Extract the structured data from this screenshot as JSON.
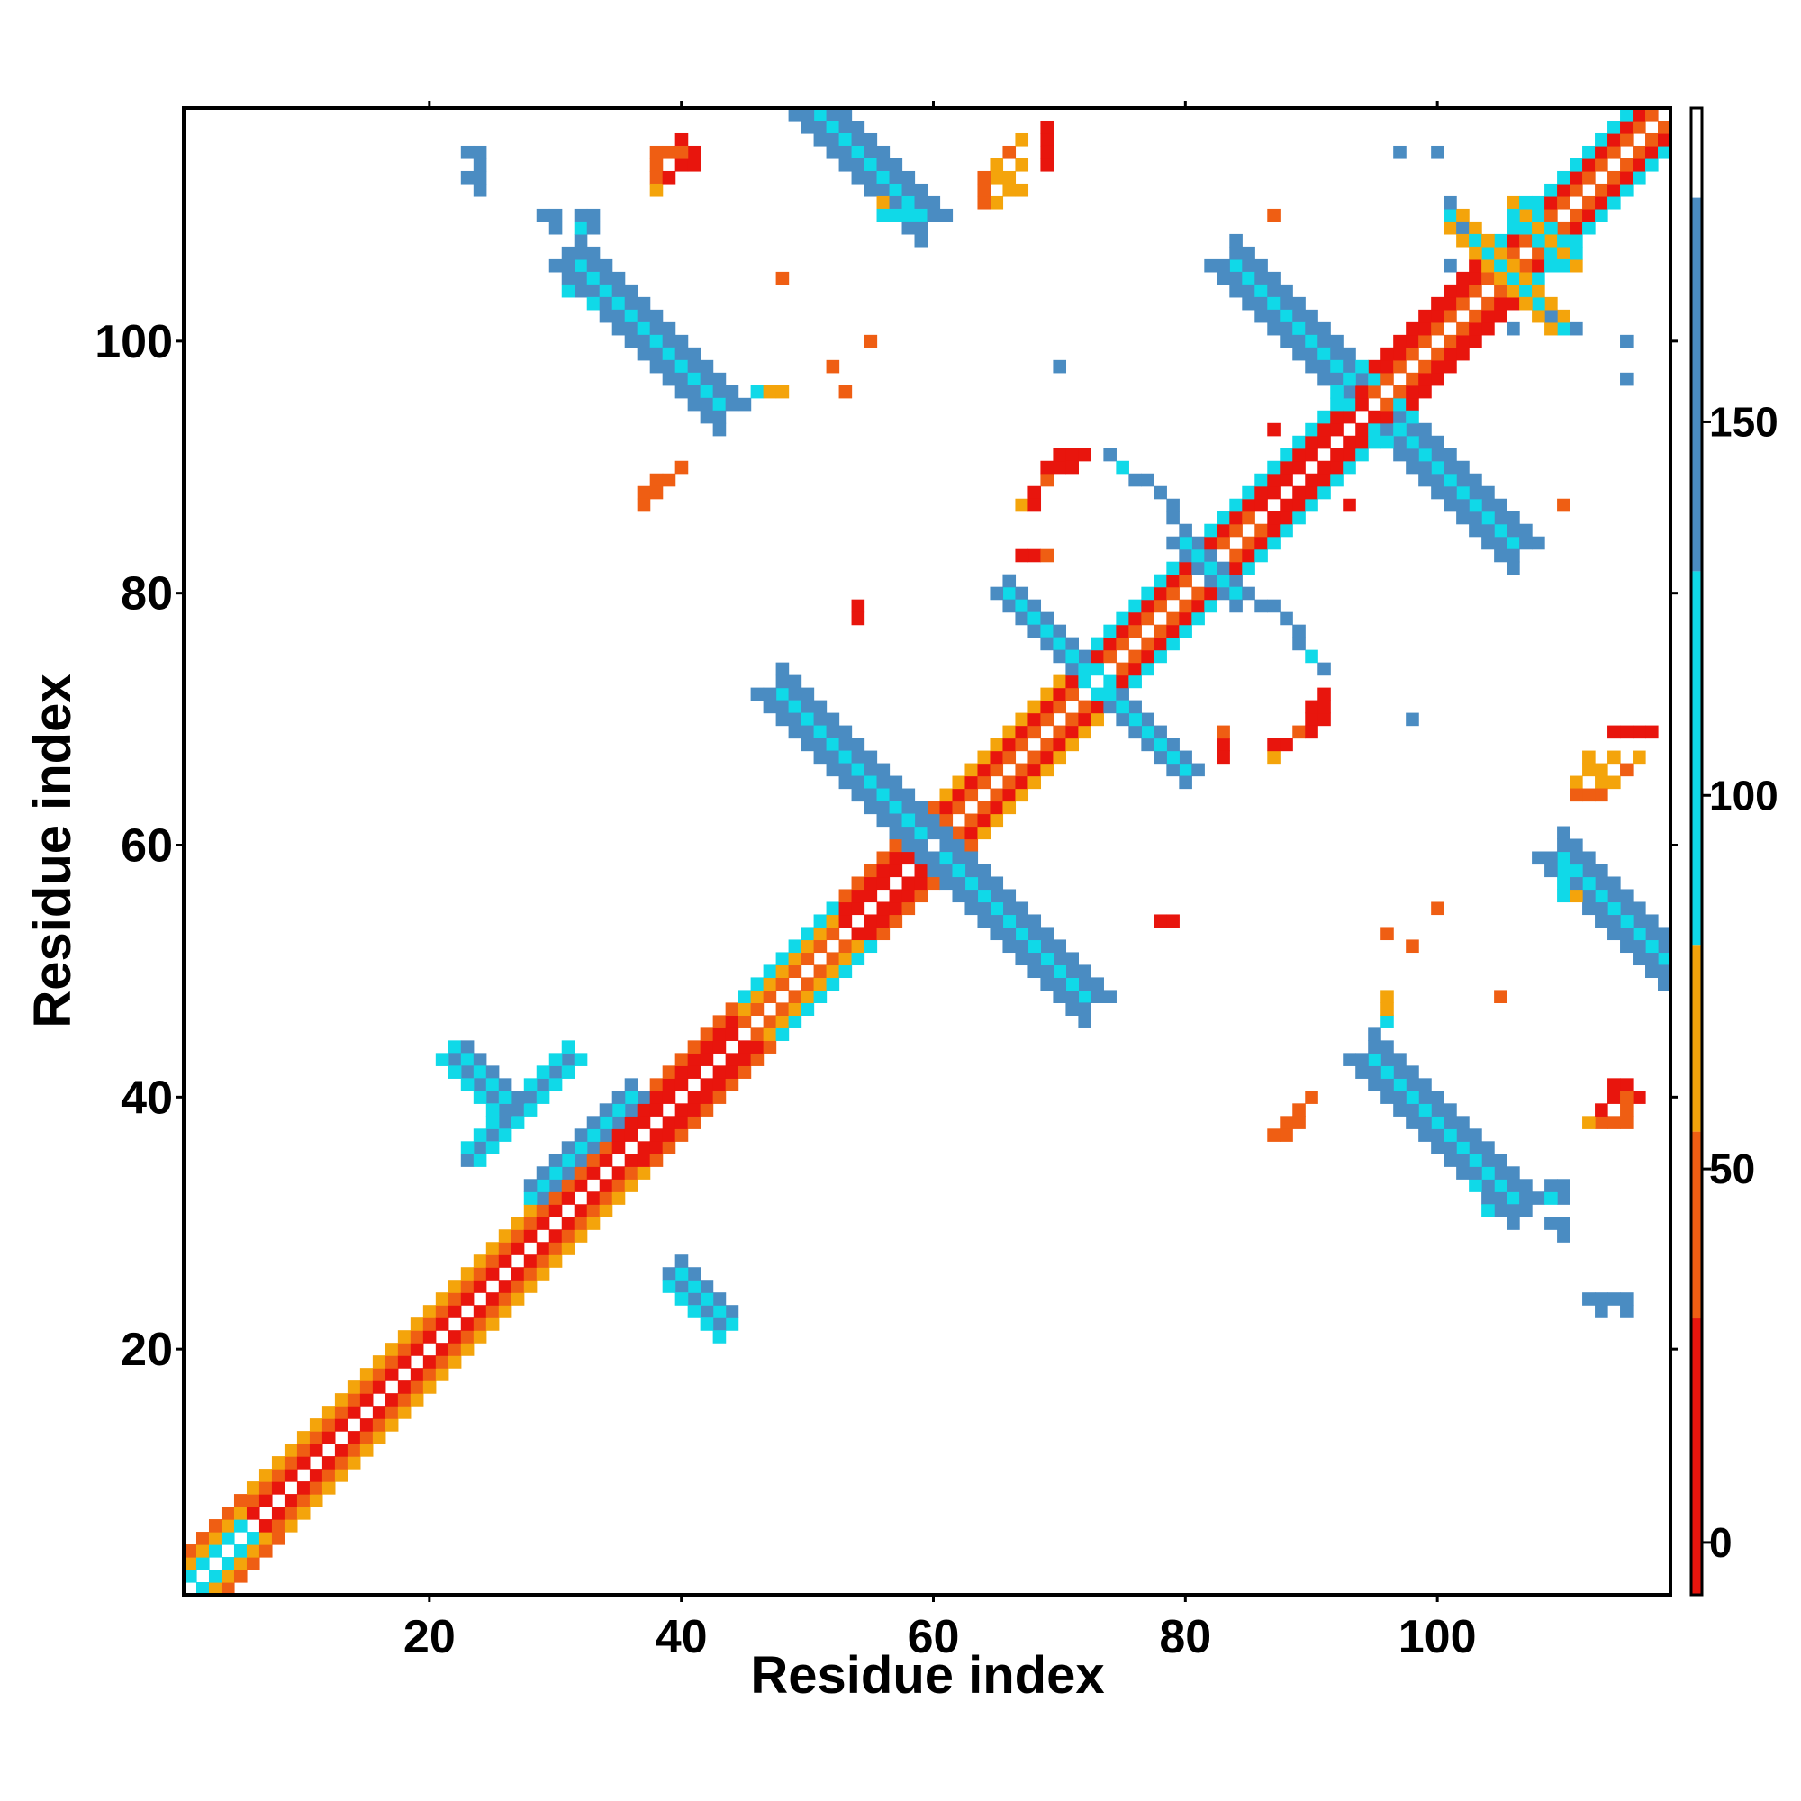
{
  "chart_data": {
    "type": "heatmap",
    "title": "",
    "xlabel": "Residue index",
    "ylabel": "Residue index",
    "xlim": [
      0.5,
      118.5
    ],
    "ylim": [
      0.5,
      118.5
    ],
    "x_ticks": [
      20,
      40,
      60,
      80,
      100
    ],
    "y_ticks": [
      20,
      40,
      60,
      80,
      100
    ],
    "x_tick_labels": [
      "20",
      "40",
      "60",
      "80",
      "100"
    ],
    "y_tick_labels": [
      "20",
      "40",
      "60",
      "80",
      "100"
    ],
    "grid": false,
    "colorbar": {
      "ticks": [
        0,
        50,
        100,
        150
      ],
      "tick_labels": [
        "0",
        "50",
        "100",
        "150"
      ],
      "range": [
        -7,
        192
      ],
      "bands": [
        {
          "from": -7,
          "to": 30,
          "color": "#e8150d"
        },
        {
          "from": 30,
          "to": 55,
          "color": "#ef5e13"
        },
        {
          "from": 55,
          "to": 80,
          "color": "#f4a40b"
        },
        {
          "from": 80,
          "to": 130,
          "color": "#10d9e8"
        },
        {
          "from": 130,
          "to": 180,
          "color": "#4a8cc2"
        },
        {
          "from": 180,
          "to": 192,
          "color": "#ffffff"
        }
      ]
    },
    "colors": {
      "red": "#e8150d",
      "orange_red": "#ef5e13",
      "orange": "#f4a40b",
      "cyan": "#10d9e8",
      "steel_blue": "#4a8cc2",
      "blue": "#3a7bbf"
    },
    "diagonal": {
      "start": 1,
      "end": 118
    },
    "segments": [
      {
        "x1": 1,
        "y1": 1,
        "x2": 6,
        "y2": 6,
        "offsets": [
          1,
          2,
          3
        ],
        "colors": [
          "cyan",
          "orange",
          "orange_red"
        ]
      },
      {
        "x1": 6,
        "y1": 6,
        "x2": 35,
        "y2": 35,
        "offsets": [
          1,
          2,
          3
        ],
        "colors": [
          "red",
          "orange_red",
          "orange"
        ]
      },
      {
        "x1": 35,
        "y1": 35,
        "x2": 45,
        "y2": 45,
        "offsets": [
          1,
          2,
          3
        ],
        "colors": [
          "red",
          "red",
          "orange_red"
        ]
      },
      {
        "x1": 45,
        "y1": 45,
        "x2": 53,
        "y2": 53,
        "offsets": [
          1,
          2,
          3
        ],
        "colors": [
          "orange_red",
          "orange",
          "cyan"
        ]
      },
      {
        "x1": 53,
        "y1": 53,
        "x2": 61,
        "y2": 61,
        "offsets": [
          1,
          2,
          3
        ],
        "colors": [
          "red",
          "red",
          "orange_red"
        ]
      },
      {
        "x1": 61,
        "y1": 61,
        "x2": 73,
        "y2": 73,
        "offsets": [
          1,
          2,
          3
        ],
        "colors": [
          "orange_red",
          "red",
          "orange"
        ]
      },
      {
        "x1": 73,
        "y1": 73,
        "x2": 86,
        "y2": 86,
        "offsets": [
          1,
          2,
          3
        ],
        "colors": [
          "orange_red",
          "red",
          "cyan"
        ]
      },
      {
        "x1": 86,
        "y1": 86,
        "x2": 95,
        "y2": 95,
        "offsets": [
          1,
          2,
          3
        ],
        "colors": [
          "red",
          "red",
          "cyan"
        ]
      },
      {
        "x1": 95,
        "y1": 95,
        "x2": 105,
        "y2": 105,
        "offsets": [
          1,
          2,
          3
        ],
        "colors": [
          "orange_red",
          "red",
          "red"
        ]
      },
      {
        "x1": 105,
        "y1": 105,
        "x2": 118,
        "y2": 118,
        "offsets": [
          1,
          2,
          3
        ],
        "colors": [
          "orange_red",
          "red",
          "cyan"
        ]
      },
      {
        "x1": 31,
        "y1": 43,
        "x2": 23,
        "y2": 35,
        "offsets": [
          0,
          1
        ],
        "colors": [
          "steel_blue",
          "cyan"
        ]
      },
      {
        "x1": 36,
        "y1": 40,
        "x2": 28,
        "y2": 32,
        "offsets": [
          0,
          1
        ],
        "colors": [
          "cyan",
          "steel_blue"
        ]
      },
      {
        "x1": 22,
        "y1": 44,
        "x2": 26,
        "y2": 40,
        "offsets": [
          0,
          1
        ],
        "colors": [
          "steel_blue",
          "steel_blue"
        ]
      },
      {
        "x1": 39,
        "y1": 26,
        "x2": 43,
        "y2": 22,
        "offsets": [
          0,
          1
        ],
        "colors": [
          "steel_blue",
          "cyan"
        ]
      },
      {
        "x1": 48,
        "y1": 72,
        "x2": 59,
        "y2": 61,
        "offsets": [
          0,
          1,
          2
        ],
        "colors": [
          "cyan",
          "steel_blue",
          "steel_blue"
        ]
      },
      {
        "x1": 61,
        "y1": 59,
        "x2": 72,
        "y2": 48,
        "offsets": [
          0,
          1,
          2
        ],
        "colors": [
          "cyan",
          "steel_blue",
          "steel_blue"
        ]
      },
      {
        "x1": 66,
        "y1": 80,
        "x2": 72,
        "y2": 74,
        "offsets": [
          0,
          1
        ],
        "colors": [
          "steel_blue",
          "cyan"
        ]
      },
      {
        "x1": 74,
        "y1": 72,
        "x2": 80,
        "y2": 66,
        "offsets": [
          0,
          1
        ],
        "colors": [
          "cyan",
          "steel_blue"
        ]
      },
      {
        "x1": 80,
        "y1": 84,
        "x2": 84,
        "y2": 80,
        "offsets": [
          0,
          1
        ],
        "colors": [
          "cyan",
          "steel_blue"
        ]
      },
      {
        "x1": 84,
        "y1": 106,
        "x2": 93,
        "y2": 97,
        "offsets": [
          0,
          1,
          2
        ],
        "colors": [
          "steel_blue",
          "steel_blue",
          "cyan"
        ]
      },
      {
        "x1": 97,
        "y1": 93,
        "x2": 106,
        "y2": 84,
        "offsets": [
          0,
          1,
          2
        ],
        "colors": [
          "cyan",
          "steel_blue",
          "steel_blue"
        ]
      },
      {
        "x1": 32,
        "y1": 106,
        "x2": 43,
        "y2": 95,
        "offsets": [
          0,
          1,
          2
        ],
        "colors": [
          "cyan",
          "steel_blue",
          "steel_blue"
        ]
      },
      {
        "x1": 51,
        "y1": 118,
        "x2": 59,
        "y2": 110,
        "offsets": [
          0,
          1,
          2
        ],
        "colors": [
          "cyan",
          "steel_blue",
          "steel_blue"
        ]
      },
      {
        "x1": 95,
        "y1": 43,
        "x2": 106,
        "y2": 32,
        "offsets": [
          0,
          1,
          2
        ],
        "colors": [
          "cyan",
          "steel_blue",
          "steel_blue"
        ]
      },
      {
        "x1": 110,
        "y1": 59,
        "x2": 118,
        "y2": 51,
        "offsets": [
          0,
          1,
          2
        ],
        "colors": [
          "cyan",
          "steel_blue",
          "steel_blue"
        ]
      },
      {
        "x1": 101,
        "y1": 110,
        "x2": 106,
        "y2": 105,
        "offsets": [
          0,
          1
        ],
        "colors": [
          "cyan",
          "orange"
        ]
      },
      {
        "x1": 106,
        "y1": 111,
        "x2": 110,
        "y2": 107,
        "offsets": [
          0,
          1
        ],
        "colors": [
          "orange",
          "cyan"
        ]
      }
    ],
    "cells": [
      [
        23,
        115,
        "steel_blue"
      ],
      [
        24,
        115,
        "steel_blue"
      ],
      [
        24,
        114,
        "steel_blue"
      ],
      [
        29,
        110,
        "steel_blue"
      ],
      [
        30,
        110,
        "steel_blue"
      ],
      [
        32,
        110,
        "steel_blue"
      ],
      [
        32,
        109,
        "cyan"
      ],
      [
        38,
        115,
        "orange_red"
      ],
      [
        39,
        115,
        "orange_red"
      ],
      [
        40,
        116,
        "red"
      ],
      [
        41,
        115,
        "red"
      ],
      [
        38,
        114,
        "orange_red"
      ],
      [
        38,
        113,
        "orange_red"
      ],
      [
        40,
        114,
        "orange_red"
      ],
      [
        65,
        113,
        "orange"
      ],
      [
        66,
        113,
        "orange"
      ],
      [
        67,
        114,
        "orange"
      ],
      [
        66,
        115,
        "orange_red"
      ],
      [
        67,
        116,
        "orange"
      ],
      [
        69,
        116,
        "red"
      ],
      [
        69,
        117,
        "red"
      ],
      [
        65,
        114,
        "orange"
      ],
      [
        56,
        110,
        "cyan"
      ],
      [
        57,
        110,
        "cyan"
      ],
      [
        56,
        111,
        "orange"
      ],
      [
        58,
        110,
        "cyan"
      ],
      [
        46,
        96,
        "orange"
      ],
      [
        47,
        96,
        "orange"
      ],
      [
        48,
        96,
        "orange"
      ],
      [
        52,
        98,
        "orange_red"
      ],
      [
        55,
        100,
        "orange_red"
      ],
      [
        37,
        88,
        "orange_red"
      ],
      [
        38,
        89,
        "orange_red"
      ],
      [
        39,
        89,
        "orange_red"
      ],
      [
        40,
        90,
        "orange_red"
      ],
      [
        68,
        88,
        "orange_red"
      ],
      [
        69,
        89,
        "red"
      ],
      [
        70,
        90,
        "red"
      ],
      [
        70,
        91,
        "red"
      ],
      [
        71,
        91,
        "red"
      ],
      [
        72,
        91,
        "red"
      ],
      [
        68,
        83,
        "red"
      ],
      [
        69,
        83,
        "orange_red"
      ],
      [
        54,
        79,
        "red"
      ],
      [
        74,
        91,
        "steel_blue"
      ],
      [
        76,
        89,
        "steel_blue"
      ],
      [
        77,
        89,
        "steel_blue"
      ],
      [
        78,
        88,
        "steel_blue"
      ],
      [
        79,
        87,
        "steel_blue"
      ],
      [
        70,
        98,
        "steel_blue"
      ],
      [
        86,
        79,
        "steel_blue"
      ],
      [
        88,
        78,
        "steel_blue"
      ],
      [
        89,
        77,
        "steel_blue"
      ],
      [
        90,
        75,
        "cyan"
      ],
      [
        98,
        70,
        "steel_blue"
      ],
      [
        100,
        115,
        "steel_blue"
      ],
      [
        87,
        110,
        "orange_red"
      ],
      [
        93,
        87,
        "red"
      ],
      [
        83,
        68,
        "red"
      ],
      [
        83,
        67,
        "red"
      ],
      [
        87,
        67,
        "orange"
      ],
      [
        87,
        68,
        "red"
      ],
      [
        88,
        68,
        "red"
      ],
      [
        89,
        69,
        "orange_red"
      ],
      [
        90,
        69,
        "red"
      ],
      [
        90,
        70,
        "red"
      ],
      [
        90,
        71,
        "red"
      ],
      [
        96,
        53,
        "orange_red"
      ],
      [
        100,
        55,
        "orange_red"
      ],
      [
        78,
        54,
        "red"
      ],
      [
        96,
        47,
        "orange"
      ],
      [
        96,
        48,
        "orange"
      ],
      [
        96,
        46,
        "cyan"
      ],
      [
        105,
        48,
        "orange_red"
      ],
      [
        107,
        31,
        "steel_blue"
      ],
      [
        109,
        33,
        "steel_blue"
      ],
      [
        110,
        33,
        "steel_blue"
      ],
      [
        109,
        30,
        "steel_blue"
      ],
      [
        103,
        33,
        "cyan"
      ],
      [
        104,
        31,
        "cyan"
      ],
      [
        88,
        38,
        "orange_red"
      ],
      [
        89,
        39,
        "orange_red"
      ],
      [
        90,
        40,
        "orange_red"
      ],
      [
        87,
        37,
        "orange_red"
      ],
      [
        111,
        65,
        "orange"
      ],
      [
        112,
        66,
        "orange"
      ],
      [
        113,
        66,
        "orange"
      ],
      [
        112,
        67,
        "orange"
      ],
      [
        111,
        64,
        "orange_red"
      ],
      [
        112,
        64,
        "orange_red"
      ],
      [
        113,
        64,
        "orange_red"
      ],
      [
        114,
        69,
        "red"
      ],
      [
        115,
        69,
        "red"
      ],
      [
        112,
        38,
        "orange"
      ],
      [
        113,
        39,
        "red"
      ],
      [
        114,
        40,
        "red"
      ],
      [
        114,
        41,
        "red"
      ],
      [
        115,
        40,
        "orange_red"
      ],
      [
        113,
        38,
        "orange_red"
      ],
      [
        114,
        38,
        "orange_red"
      ],
      [
        112,
        24,
        "steel_blue"
      ],
      [
        113,
        24,
        "steel_blue"
      ],
      [
        113,
        23,
        "steel_blue"
      ],
      [
        97,
        115,
        "steel_blue"
      ],
      [
        101,
        111,
        "steel_blue"
      ],
      [
        106,
        101,
        "steel_blue"
      ],
      [
        109,
        102,
        "steel_blue"
      ]
    ]
  }
}
